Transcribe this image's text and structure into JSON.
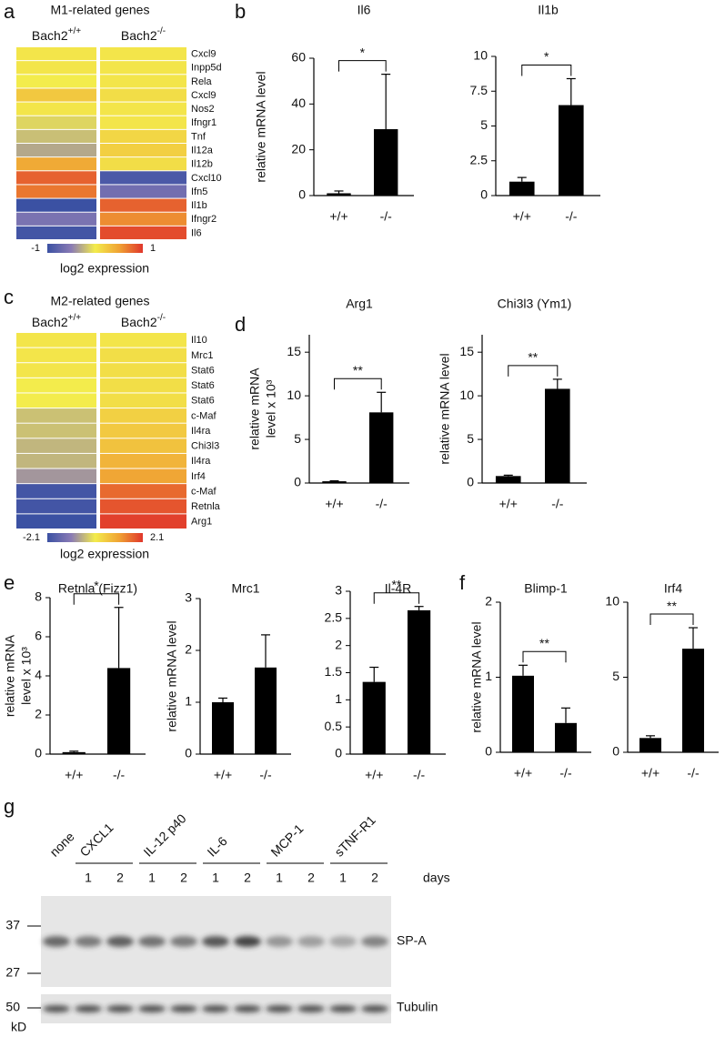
{
  "panel_labels": [
    "a",
    "b",
    "c",
    "d",
    "e",
    "f",
    "g"
  ],
  "chart_data": [
    {
      "type": "heatmap",
      "title": "M1-related genes",
      "columns": [
        {
          "text": "Bach2",
          "superscript": "+/+"
        },
        {
          "text": "Bach2",
          "superscript": "-/-"
        }
      ],
      "rows": [
        "Cxcl9",
        "Inpp5d",
        "Rela",
        "Cxcl9",
        "Nos2",
        "Ifngr1",
        "Tnf",
        "Il12a",
        "Il12b",
        "Cxcl10",
        "Ifn5",
        "Il1b",
        "Ifngr2",
        "Il6"
      ],
      "values": [
        [
          0.05,
          0.05
        ],
        [
          0.05,
          0.05
        ],
        [
          0.0,
          0.05
        ],
        [
          0.25,
          0.1
        ],
        [
          0.05,
          0.05
        ],
        [
          -0.1,
          0.05
        ],
        [
          -0.2,
          0.15
        ],
        [
          -0.3,
          0.2
        ],
        [
          0.45,
          0.1
        ],
        [
          0.8,
          -0.9
        ],
        [
          0.7,
          -0.65
        ],
        [
          -1.0,
          0.8
        ],
        [
          -0.6,
          0.6
        ],
        [
          -0.95,
          0.9
        ]
      ],
      "colorscale": [
        "#3b51a3",
        "#8a7bb5",
        "#f3ec4c",
        "#f0a334",
        "#e0362b"
      ],
      "clim": [
        -1,
        1
      ],
      "cticks": [
        -1,
        1
      ],
      "colorbar_label": "log2 expression"
    },
    {
      "type": "bar",
      "title": "Il6",
      "ylabel": [
        "relative mRNA level"
      ],
      "categories": [
        "+/+",
        "-/-"
      ],
      "values": [
        1,
        29
      ],
      "errors": [
        1,
        24
      ],
      "ylim": [
        0,
        60
      ],
      "yticks": [
        0,
        20,
        40,
        60
      ],
      "significance": "*",
      "color": "#000000"
    },
    {
      "type": "bar",
      "title": "Il1b",
      "ylabel": [],
      "categories": [
        "+/+",
        "-/-"
      ],
      "values": [
        1.0,
        6.5
      ],
      "errors": [
        0.3,
        1.9
      ],
      "ylim": [
        0,
        10
      ],
      "yticks": [
        0,
        2.5,
        5,
        7.5,
        10
      ],
      "significance": "*",
      "color": "#000000"
    },
    {
      "type": "heatmap",
      "title": "M2-related genes",
      "columns": [
        {
          "text": "Bach2",
          "superscript": "+/+"
        },
        {
          "text": "Bach2",
          "superscript": "-/-"
        }
      ],
      "rows": [
        "Il10",
        "Mrc1",
        "Stat6",
        "Stat6",
        "Stat6",
        "c-Maf",
        "Il4ra",
        "Chi3l3",
        "Il4ra",
        "Irf4",
        "c-Maf",
        "Retnla",
        "Arg1"
      ],
      "values": [
        [
          0.1,
          0.1
        ],
        [
          0.1,
          0.2
        ],
        [
          0.1,
          0.2
        ],
        [
          0.0,
          0.2
        ],
        [
          0.0,
          0.2
        ],
        [
          -0.4,
          0.4
        ],
        [
          -0.4,
          0.5
        ],
        [
          -0.5,
          0.6
        ],
        [
          -0.5,
          0.8
        ],
        [
          -0.8,
          1.0
        ],
        [
          -2.0,
          1.6
        ],
        [
          -2.0,
          1.8
        ],
        [
          -2.1,
          2.0
        ]
      ],
      "colorscale": [
        "#3b51a3",
        "#8a7bb5",
        "#f3ec4c",
        "#f0a334",
        "#e0362b"
      ],
      "clim": [
        -2.1,
        2.1
      ],
      "cticks": [
        -2.1,
        2.1
      ],
      "colorbar_label": "log2 expression"
    },
    {
      "type": "bar",
      "title": "Arg1",
      "ylabel": [
        "relative mRNA",
        "level x 10³"
      ],
      "categories": [
        "+/+",
        "-/-"
      ],
      "values": [
        0.2,
        8.1
      ],
      "errors": [
        0.05,
        2.3
      ],
      "ylim": [
        0,
        17
      ],
      "yticks": [
        0,
        5,
        10,
        15
      ],
      "significance": "**",
      "color": "#000000"
    },
    {
      "type": "bar",
      "title": "Chi3l3 (Ym1)",
      "ylabel": [
        "relative mRNA level"
      ],
      "categories": [
        "+/+",
        "-/-"
      ],
      "values": [
        0.8,
        10.8
      ],
      "errors": [
        0.1,
        1.1
      ],
      "ylim": [
        0,
        17
      ],
      "yticks": [
        0,
        5,
        10,
        15
      ],
      "significance": "**",
      "color": "#000000"
    },
    {
      "type": "bar",
      "title": "Retnla (Fizz1)",
      "ylabel": [
        "relative mRNA",
        "level x 10³"
      ],
      "categories": [
        "+/+",
        "-/-"
      ],
      "values": [
        0.1,
        4.4
      ],
      "errors": [
        0.05,
        3.1
      ],
      "ylim": [
        0,
        8
      ],
      "yticks": [
        0,
        2,
        4,
        6,
        8
      ],
      "significance": "*",
      "color": "#000000"
    },
    {
      "type": "bar",
      "title": "Mrc1",
      "ylabel": [
        "relative mRNA level"
      ],
      "categories": [
        "+/+",
        "-/-"
      ],
      "values": [
        1.0,
        1.67
      ],
      "errors": [
        0.08,
        0.63
      ],
      "ylim": [
        0,
        3
      ],
      "yticks": [
        0,
        1,
        2,
        3
      ],
      "color": "#000000"
    },
    {
      "type": "bar",
      "title": "Il-4R",
      "ylabel": [],
      "categories": [
        "+/+",
        "-/-"
      ],
      "values": [
        1.33,
        2.65
      ],
      "errors": [
        0.27,
        0.07
      ],
      "ylim": [
        0,
        3
      ],
      "yticks": [
        0,
        0.5,
        1,
        1.5,
        2,
        2.5,
        3
      ],
      "significance": "**",
      "color": "#000000"
    },
    {
      "type": "bar",
      "title": "Blimp-1",
      "ylabel": [
        "relative mRNA level"
      ],
      "categories": [
        "+/+",
        "-/-"
      ],
      "values": [
        1.02,
        0.39
      ],
      "errors": [
        0.14,
        0.2
      ],
      "ylim": [
        0,
        2
      ],
      "yticks": [
        0,
        1,
        2
      ],
      "significance": "**",
      "color": "#000000"
    },
    {
      "type": "bar",
      "title": "Irf4",
      "ylabel": [],
      "categories": [
        "+/+",
        "-/-"
      ],
      "values": [
        0.95,
        6.9
      ],
      "errors": [
        0.15,
        1.4
      ],
      "ylim": [
        0,
        10
      ],
      "yticks": [
        0,
        5,
        10
      ],
      "significance": "**",
      "color": "#000000"
    }
  ],
  "blot": {
    "none_label": "none",
    "groups": [
      {
        "name": "CXCL1",
        "days": [
          "1",
          "2"
        ]
      },
      {
        "name": "IL-12 p40",
        "days": [
          "1",
          "2"
        ]
      },
      {
        "name": "IL-6",
        "days": [
          "1",
          "2"
        ]
      },
      {
        "name": "MCP-1",
        "days": [
          "1",
          "2"
        ]
      },
      {
        "name": "sTNF-R1",
        "days": [
          "1",
          "2"
        ]
      }
    ],
    "days_label": "days",
    "markers_kd": [
      37,
      27,
      50
    ],
    "unit": "kD",
    "bands": [
      "SP-A",
      "Tubulin"
    ]
  }
}
